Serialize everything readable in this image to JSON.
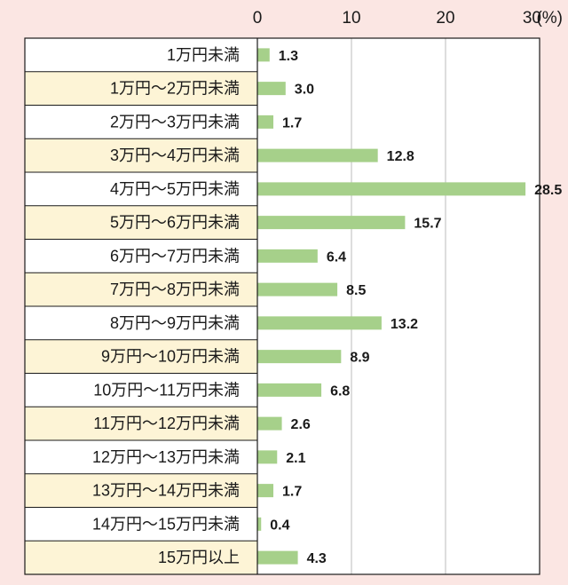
{
  "chart_data": {
    "type": "bar",
    "orientation": "horizontal",
    "unit_label": "(%)",
    "xlim": [
      0,
      30
    ],
    "xticks": [
      "0",
      "10",
      "20",
      "30"
    ],
    "grid": true,
    "colors": {
      "bar": "#a6d08a",
      "row_white": "#ffffff",
      "row_cream": "#fdf4d6",
      "page_bg": "#fbe6e3",
      "border": "#1a1a1a",
      "grid": "#bbbbbb"
    },
    "categories": [
      "1万円未満",
      "1万円～2万円未満",
      "2万円～3万円未満",
      "3万円～4万円未満",
      "4万円～5万円未満",
      "5万円～6万円未満",
      "6万円～7万円未満",
      "7万円～8万円未満",
      "8万円～9万円未満",
      "9万円～10万円未満",
      "10万円～11万円未満",
      "11万円～12万円未満",
      "12万円～13万円未満",
      "13万円～14万円未満",
      "14万円～15万円未満",
      "15万円以上"
    ],
    "values": [
      1.3,
      3.0,
      1.7,
      12.8,
      28.5,
      15.7,
      6.4,
      8.5,
      13.2,
      8.9,
      6.8,
      2.6,
      2.1,
      1.7,
      0.4,
      4.3
    ],
    "value_labels": [
      "1.3",
      "3.0",
      "1.7",
      "12.8",
      "28.5",
      "15.7",
      "6.4",
      "8.5",
      "13.2",
      "8.9",
      "6.8",
      "2.6",
      "2.1",
      "1.7",
      "0.4",
      "4.3"
    ]
  }
}
